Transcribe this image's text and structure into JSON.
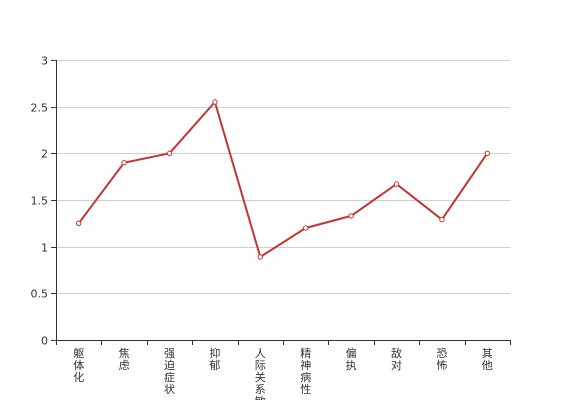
{
  "chart_data": {
    "type": "line",
    "categories": [
      "躯体化",
      "焦虑",
      "强迫症状",
      "抑郁",
      "人际关系敏感",
      "精神病性",
      "偏执",
      "敌对",
      "恐怖",
      "其他"
    ],
    "series": [
      {
        "values": [
          1.25,
          1.9,
          2.0,
          2.55,
          0.89,
          1.2,
          1.33,
          1.67,
          1.29,
          2.0
        ],
        "color": "#c23531"
      }
    ],
    "ylim": [
      0,
      3
    ],
    "yticks": [
      "0",
      "0.5",
      "1",
      "1.5",
      "2",
      "2.5",
      "3"
    ],
    "grid": true,
    "title": "",
    "xlabel": "",
    "ylabel": ""
  },
  "colors": {
    "axis": "#333333",
    "grid": "#cfcfcf",
    "marker_fill": "#ffffff"
  }
}
